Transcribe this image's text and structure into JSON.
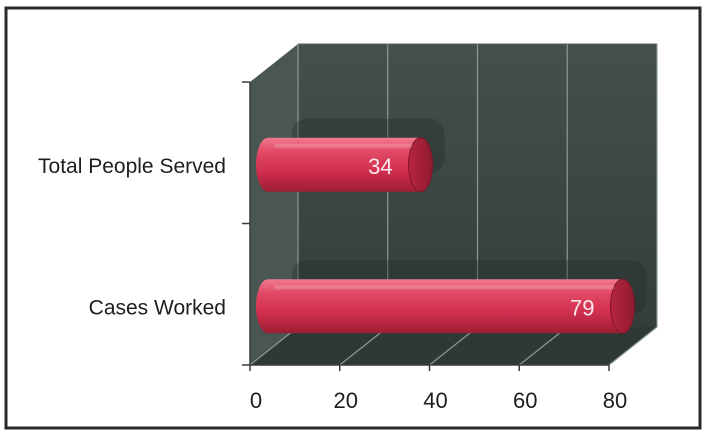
{
  "chart_data": {
    "type": "bar",
    "orientation": "horizontal",
    "style": "3d-cylinder",
    "title": "",
    "xlabel": "",
    "ylabel": "",
    "categories": [
      "Total People Served",
      "Cases Worked"
    ],
    "values": [
      34,
      79
    ],
    "data_labels": [
      "34",
      "79"
    ],
    "x_ticks": [
      0,
      20,
      40,
      60,
      80
    ],
    "x_tick_labels": [
      "0",
      "20",
      "40",
      "60",
      "80"
    ],
    "xlim": [
      0,
      80
    ],
    "grid": true,
    "legend": "none",
    "colors": {
      "bar": "#d63352",
      "bar_dark": "#8f1b31",
      "plot_back": "#3b4743",
      "plot_floor": "#2f3a37",
      "plot_wall": "#46524e",
      "grid": "#8d9994",
      "data_label": "#fbe8ec",
      "axis_text": "#1e1e1e",
      "border": "#2a2a2a"
    }
  }
}
